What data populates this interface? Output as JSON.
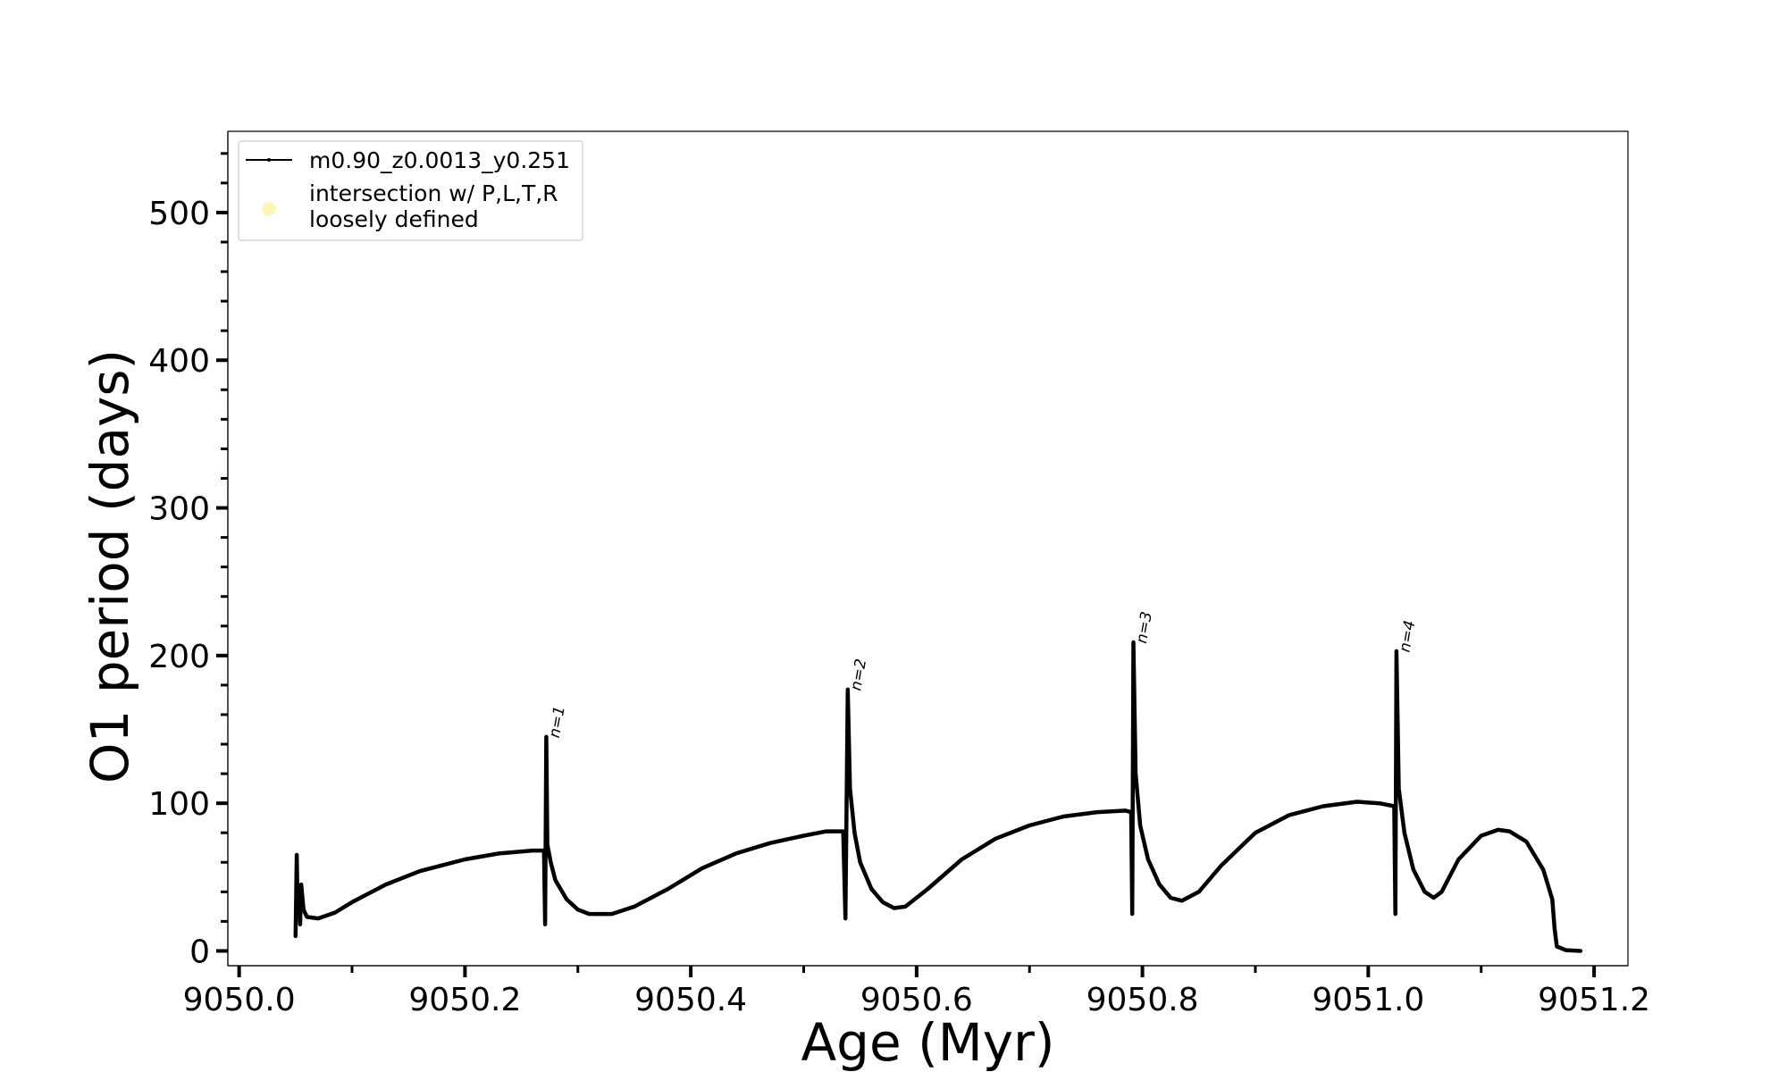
{
  "chart_data": {
    "type": "line",
    "title": "",
    "xlabel": "Age (Myr)",
    "ylabel": "O1 period (days)",
    "xlim": [
      9049.99,
      9051.23
    ],
    "ylim": [
      -10,
      555
    ],
    "x_ticks": [
      9050.0,
      9050.2,
      9050.4,
      9050.6,
      9050.8,
      9051.0,
      9051.2
    ],
    "x_tick_labels": [
      "9050.0",
      "9050.2",
      "9050.4",
      "9050.6",
      "9050.8",
      "9051.0",
      "9051.2"
    ],
    "y_ticks": [
      0,
      100,
      200,
      300,
      400,
      500
    ],
    "y_tick_labels": [
      "0",
      "100",
      "200",
      "300",
      "400",
      "500"
    ],
    "grid": false,
    "legend": {
      "placement": "top-left",
      "entries": [
        {
          "label": "m0.90_z0.0013_y0.251",
          "marker": "line-dot",
          "color": "#000000"
        },
        {
          "label": "intersection w/ P,L,T,R\nloosely defined",
          "marker": "circle",
          "color": "#fff3b0"
        }
      ]
    },
    "series": [
      {
        "name": "m0.90_z0.0013_y0.251",
        "color": "#000000",
        "points": [
          [
            9050.05,
            10
          ],
          [
            9050.051,
            65
          ],
          [
            9050.052,
            25
          ],
          [
            9050.053,
            40
          ],
          [
            9050.054,
            18
          ],
          [
            9050.055,
            45
          ],
          [
            9050.057,
            28
          ],
          [
            9050.06,
            23
          ],
          [
            9050.07,
            22
          ],
          [
            9050.085,
            26
          ],
          [
            9050.1,
            33
          ],
          [
            9050.13,
            45
          ],
          [
            9050.16,
            54
          ],
          [
            9050.2,
            62
          ],
          [
            9050.23,
            66
          ],
          [
            9050.26,
            68
          ],
          [
            9050.27,
            68
          ],
          [
            9050.271,
            18
          ],
          [
            9050.272,
            145
          ],
          [
            9050.273,
            72
          ],
          [
            9050.276,
            60
          ],
          [
            9050.28,
            48
          ],
          [
            9050.29,
            35
          ],
          [
            9050.3,
            28
          ],
          [
            9050.31,
            25
          ],
          [
            9050.33,
            25
          ],
          [
            9050.35,
            30
          ],
          [
            9050.38,
            42
          ],
          [
            9050.41,
            56
          ],
          [
            9050.44,
            66
          ],
          [
            9050.47,
            73
          ],
          [
            9050.5,
            78
          ],
          [
            9050.52,
            81
          ],
          [
            9050.535,
            81
          ],
          [
            9050.537,
            22
          ],
          [
            9050.539,
            177
          ],
          [
            9050.541,
            110
          ],
          [
            9050.545,
            80
          ],
          [
            9050.55,
            60
          ],
          [
            9050.56,
            42
          ],
          [
            9050.57,
            33
          ],
          [
            9050.58,
            29
          ],
          [
            9050.59,
            30
          ],
          [
            9050.61,
            42
          ],
          [
            9050.64,
            62
          ],
          [
            9050.67,
            76
          ],
          [
            9050.7,
            85
          ],
          [
            9050.73,
            91
          ],
          [
            9050.76,
            94
          ],
          [
            9050.785,
            95
          ],
          [
            9050.79,
            94
          ],
          [
            9050.791,
            25
          ],
          [
            9050.792,
            209
          ],
          [
            9050.794,
            120
          ],
          [
            9050.798,
            85
          ],
          [
            9050.805,
            62
          ],
          [
            9050.815,
            45
          ],
          [
            9050.825,
            36
          ],
          [
            9050.835,
            34
          ],
          [
            9050.85,
            40
          ],
          [
            9050.87,
            58
          ],
          [
            9050.9,
            80
          ],
          [
            9050.93,
            92
          ],
          [
            9050.96,
            98
          ],
          [
            9050.99,
            101
          ],
          [
            9051.01,
            100
          ],
          [
            9051.023,
            98
          ],
          [
            9051.024,
            25
          ],
          [
            9051.025,
            203
          ],
          [
            9051.027,
            110
          ],
          [
            9051.032,
            80
          ],
          [
            9051.04,
            55
          ],
          [
            9051.05,
            40
          ],
          [
            9051.058,
            36
          ],
          [
            9051.065,
            40
          ],
          [
            9051.08,
            62
          ],
          [
            9051.1,
            78
          ],
          [
            9051.115,
            82
          ],
          [
            9051.125,
            81
          ],
          [
            9051.14,
            74
          ],
          [
            9051.155,
            55
          ],
          [
            9051.163,
            35
          ],
          [
            9051.165,
            15
          ],
          [
            9051.167,
            3
          ],
          [
            9051.175,
            0.5
          ],
          [
            9051.188,
            0
          ]
        ]
      }
    ],
    "annotations": [
      {
        "text": "n=1",
        "x": 9050.273,
        "y": 145
      },
      {
        "text": "n=2",
        "x": 9050.54,
        "y": 177
      },
      {
        "text": "n=3",
        "x": 9050.793,
        "y": 209
      },
      {
        "text": "n=4",
        "x": 9051.026,
        "y": 203
      }
    ]
  }
}
